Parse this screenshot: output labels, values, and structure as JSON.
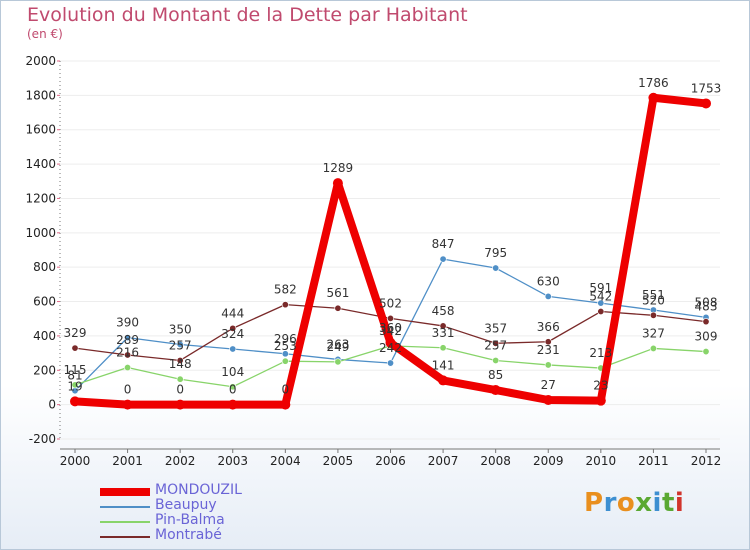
{
  "chart_data": {
    "type": "line",
    "title": "Evolution du Montant de la Dette par Habitant",
    "subtitle": "(en €)",
    "xlabel": "",
    "ylabel": "",
    "ylim": [
      -200,
      2000
    ],
    "yticks": [
      -200,
      0,
      200,
      400,
      600,
      800,
      1000,
      1200,
      1400,
      1600,
      1800,
      2000
    ],
    "categories": [
      "2000",
      "2001",
      "2002",
      "2003",
      "2004",
      "2005",
      "2006",
      "2007",
      "2008",
      "2009",
      "2010",
      "2011",
      "2012"
    ],
    "series": [
      {
        "name": "MONDOUZIL",
        "color": "#ee0000",
        "width": 8,
        "values": [
          19,
          0,
          0,
          0,
          0,
          1289,
          360,
          141,
          85,
          27,
          23,
          1786,
          1753
        ],
        "labels": [
          "19",
          "0",
          "0",
          "0",
          "0",
          "1289",
          "360",
          "141",
          "85",
          "27",
          "23",
          "1786",
          "1753"
        ]
      },
      {
        "name": "Beaupuy",
        "color": "#4f8fc7",
        "width": 1.3,
        "values": [
          81,
          390,
          350,
          324,
          296,
          263,
          242,
          847,
          795,
          630,
          591,
          551,
          508
        ],
        "labels": [
          "81",
          "390",
          "350",
          "324",
          "296",
          "263",
          "242",
          "847",
          "795",
          "630",
          "591",
          "551",
          "508"
        ]
      },
      {
        "name": "Pin-Balma",
        "color": "#88d46a",
        "width": 1.3,
        "values": [
          115,
          216,
          148,
          104,
          253,
          249,
          342,
          331,
          257,
          231,
          213,
          327,
          309
        ],
        "labels": [
          "115",
          "216",
          "148",
          "104",
          "253",
          "249",
          "342",
          "331",
          "257",
          "231",
          "213",
          "327",
          "309"
        ]
      },
      {
        "name": "Montrabé",
        "color": "#7a2a2a",
        "width": 1.3,
        "values": [
          329,
          289,
          257,
          444,
          582,
          561,
          502,
          458,
          357,
          366,
          542,
          520,
          483
        ],
        "labels": [
          "329",
          "289",
          "257",
          "444",
          "582",
          "561",
          "502",
          "458",
          "357",
          "366",
          "542",
          "520",
          "483"
        ]
      }
    ],
    "legend_position": "bottom-left"
  },
  "logo": {
    "text": "Proxiti",
    "colors": [
      "#e98f1e",
      "#3d8fd1",
      "#e98f1e",
      "#5aa832",
      "#3d8fd1",
      "#5aa832",
      "#d1342c"
    ]
  }
}
